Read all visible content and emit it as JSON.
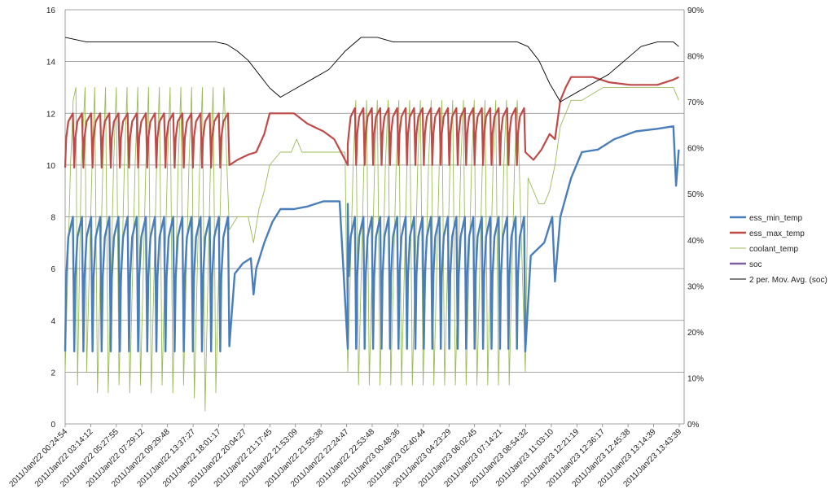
{
  "chart_data": {
    "type": "line",
    "left_axis": {
      "min": 0,
      "max": 16,
      "ticks": [
        "0",
        "2",
        "4",
        "6",
        "8",
        "10",
        "12",
        "14",
        "16"
      ]
    },
    "right_axis": {
      "min": 0,
      "max": 90,
      "ticks": [
        "0%",
        "10%",
        "20%",
        "30%",
        "40%",
        "50%",
        "60%",
        "70%",
        "80%",
        "90%"
      ]
    },
    "x_labels": [
      "2011/Jan/22 00:24:54",
      "2011/Jan/22 03:14:12",
      "2011/Jan/22 05:27:55",
      "2011/Jan/22 07:29:12",
      "2011/Jan/22 09:29:48",
      "2011/Jan/22 13:37:27",
      "2011/Jan/22 18:01:17",
      "2011/Jan/22 20:04:27",
      "2011/Jan/22 21:17:45",
      "2011/Jan/22 21:53:09",
      "2011/Jan/22 21:55:38",
      "2011/Jan/22 22:24:47",
      "2011/Jan/22 22:53:48",
      "2011/Jan/23 00:48:36",
      "2011/Jan/23 02:40:44",
      "2011/Jan/23 04:23:29",
      "2011/Jan/23 06:02:45",
      "2011/Jan/23 07:14:21",
      "2011/Jan/23 08:54:32",
      "2011/Jan/23 11:03:10",
      "2011/Jan/23 12:21:19",
      "2011/Jan/23 12:36:17",
      "2011/Jan/23 12:45:38",
      "2011/Jan/23 13:14:39",
      "2011/Jan/23 13:43:39"
    ],
    "grid": true,
    "legend_position": "right",
    "legend": [
      {
        "name": "ess_min_temp",
        "color": "#4a7ebb"
      },
      {
        "name": "ess_max_temp",
        "color": "#be4b48"
      },
      {
        "name": "coolant_temp",
        "color": "#9bbb59"
      },
      {
        "name": "soc",
        "color": "#7d60a0"
      },
      {
        "name": "2 per. Mov. Avg. (soc)",
        "color": "#000000"
      }
    ],
    "series": [
      {
        "name": "soc (2 per. Mov. Avg.)",
        "axis": "right",
        "values": [
          [
            0.0,
            84
          ],
          [
            4.0,
            83
          ],
          [
            8.0,
            83
          ],
          [
            12.0,
            83
          ],
          [
            16.0,
            83
          ],
          [
            20.0,
            83
          ],
          [
            24.0,
            83
          ],
          [
            28.0,
            83
          ],
          [
            30.0,
            82.5
          ],
          [
            32.0,
            81
          ],
          [
            34.0,
            79
          ],
          [
            36.0,
            76
          ],
          [
            38.0,
            73
          ],
          [
            40.0,
            71
          ],
          [
            43.0,
            73
          ],
          [
            46.0,
            75
          ],
          [
            49.0,
            77
          ],
          [
            52.0,
            81
          ],
          [
            55.0,
            84
          ],
          [
            58.0,
            84
          ],
          [
            61.0,
            83
          ],
          [
            64.0,
            83
          ],
          [
            68.0,
            83
          ],
          [
            72.0,
            83
          ],
          [
            76.0,
            83
          ],
          [
            80.0,
            83
          ],
          [
            84.0,
            83
          ],
          [
            86.0,
            82
          ],
          [
            88.0,
            79
          ],
          [
            90.0,
            74
          ],
          [
            92.0,
            70
          ],
          [
            95.0,
            72
          ],
          [
            98.0,
            74
          ],
          [
            101.0,
            76
          ],
          [
            104.0,
            79
          ],
          [
            107.0,
            82
          ],
          [
            110.0,
            83
          ],
          [
            113.0,
            83
          ],
          [
            114.0,
            82
          ]
        ]
      },
      {
        "name": "ess_min_temp",
        "axis": "left",
        "sawtooth_segments": [
          {
            "x_start": 0.0,
            "x_end": 30.5,
            "teeth": 18,
            "low": 2.8,
            "high": 8.0
          },
          {
            "x_start": 52.5,
            "x_end": 85.5,
            "teeth": 21,
            "low": 2.9,
            "high": 8.0
          }
        ],
        "values": [
          [
            30.5,
            3.0
          ],
          [
            31.5,
            5.8
          ],
          [
            33.0,
            6.2
          ],
          [
            34.5,
            6.4
          ],
          [
            35.0,
            5.0
          ],
          [
            35.5,
            6.0
          ],
          [
            37.0,
            7.0
          ],
          [
            38.5,
            7.8
          ],
          [
            40.0,
            8.3
          ],
          [
            42.5,
            8.3
          ],
          [
            45.0,
            8.4
          ],
          [
            48.0,
            8.6
          ],
          [
            51.0,
            8.6
          ],
          [
            52.5,
            8.5
          ],
          [
            85.5,
            2.8
          ],
          [
            86.5,
            6.5
          ],
          [
            89.0,
            7.0
          ],
          [
            90.5,
            8.0
          ],
          [
            91.0,
            5.5
          ],
          [
            92.0,
            8.0
          ],
          [
            94.0,
            9.5
          ],
          [
            96.0,
            10.5
          ],
          [
            99.0,
            10.6
          ],
          [
            102.0,
            11.0
          ],
          [
            106.0,
            11.3
          ],
          [
            110.0,
            11.4
          ],
          [
            113.0,
            11.5
          ],
          [
            113.5,
            9.2
          ],
          [
            114.0,
            10.6
          ]
        ]
      },
      {
        "name": "ess_max_temp",
        "axis": "left",
        "sawtooth_segments": [
          {
            "x_start": 0.0,
            "x_end": 30.5,
            "teeth": 18,
            "low": 9.9,
            "high": 12.0
          },
          {
            "x_start": 52.5,
            "x_end": 85.5,
            "teeth": 21,
            "low": 10.0,
            "high": 12.2
          }
        ],
        "values": [
          [
            30.5,
            10.0
          ],
          [
            32.0,
            10.2
          ],
          [
            34.0,
            10.4
          ],
          [
            35.5,
            10.5
          ],
          [
            37.0,
            11.2
          ],
          [
            38.0,
            12.0
          ],
          [
            40.0,
            12.0
          ],
          [
            42.5,
            12.0
          ],
          [
            45.0,
            11.6
          ],
          [
            48.0,
            11.3
          ],
          [
            50.0,
            11.0
          ],
          [
            52.5,
            10.8
          ],
          [
            85.5,
            10.5
          ],
          [
            87.0,
            10.2
          ],
          [
            88.5,
            10.6
          ],
          [
            90.0,
            11.2
          ],
          [
            91.0,
            11.0
          ],
          [
            92.0,
            12.5
          ],
          [
            93.0,
            13.0
          ],
          [
            94.0,
            13.4
          ],
          [
            98.0,
            13.4
          ],
          [
            101.0,
            13.2
          ],
          [
            105.0,
            13.1
          ],
          [
            110.0,
            13.1
          ],
          [
            113.0,
            13.3
          ],
          [
            114.0,
            13.4
          ]
        ]
      },
      {
        "name": "coolant_temp",
        "axis": "left",
        "values": [
          [
            0,
            2.0
          ],
          [
            1,
            10
          ],
          [
            1.5,
            12.5
          ],
          [
            2,
            13
          ],
          [
            2.3,
            1.5
          ],
          [
            3,
            10
          ],
          [
            3.7,
            13
          ],
          [
            4,
            2
          ],
          [
            5,
            10
          ],
          [
            5.5,
            13
          ],
          [
            6,
            1.2
          ],
          [
            7,
            10
          ],
          [
            7.5,
            13
          ],
          [
            8,
            1.2
          ],
          [
            9,
            10
          ],
          [
            9.5,
            13
          ],
          [
            10,
            1.5
          ],
          [
            11,
            10
          ],
          [
            11.5,
            13
          ],
          [
            12,
            1.2
          ],
          [
            13,
            10
          ],
          [
            13.5,
            13
          ],
          [
            14,
            1.5
          ],
          [
            15,
            10
          ],
          [
            15.5,
            13
          ],
          [
            16,
            1.2
          ],
          [
            17,
            10
          ],
          [
            17.5,
            13
          ],
          [
            18,
            1.5
          ],
          [
            19,
            10
          ],
          [
            19.5,
            13
          ],
          [
            20,
            1.2
          ],
          [
            21,
            10
          ],
          [
            21.5,
            13
          ],
          [
            22,
            1.5
          ],
          [
            23,
            10
          ],
          [
            23.5,
            13
          ],
          [
            24,
            1.0
          ],
          [
            25,
            10
          ],
          [
            25.5,
            13
          ],
          [
            26,
            0.5
          ],
          [
            27,
            10
          ],
          [
            27.5,
            13
          ],
          [
            28,
            1.2
          ],
          [
            29,
            10
          ],
          [
            29.5,
            13
          ],
          [
            30.5,
            7.5
          ],
          [
            32,
            8.0
          ],
          [
            34,
            8.0
          ],
          [
            35,
            7.0
          ],
          [
            36,
            8.3
          ],
          [
            37,
            9.0
          ],
          [
            38,
            10.0
          ],
          [
            40,
            10.5
          ],
          [
            42,
            10.5
          ],
          [
            43,
            11.0
          ],
          [
            44,
            10.5
          ],
          [
            48,
            10.5
          ],
          [
            52,
            10.5
          ],
          [
            52.5,
            2.0
          ],
          [
            53.5,
            10
          ],
          [
            54,
            12.5
          ],
          [
            54.5,
            1.5
          ],
          [
            55.5,
            10
          ],
          [
            56,
            12.5
          ],
          [
            56.5,
            1.5
          ],
          [
            57.5,
            10
          ],
          [
            58,
            12.5
          ],
          [
            58.5,
            1.5
          ],
          [
            59.5,
            10
          ],
          [
            60,
            12.5
          ],
          [
            60.5,
            1.5
          ],
          [
            61.5,
            10
          ],
          [
            62,
            12.5
          ],
          [
            62.5,
            1.5
          ],
          [
            63.5,
            10
          ],
          [
            64,
            12.5
          ],
          [
            64.5,
            1.5
          ],
          [
            65.5,
            10
          ],
          [
            66,
            12.5
          ],
          [
            66.5,
            1.5
          ],
          [
            67.5,
            10
          ],
          [
            68,
            12.5
          ],
          [
            68.5,
            1.5
          ],
          [
            69.5,
            10
          ],
          [
            70,
            12.5
          ],
          [
            70.5,
            1.5
          ],
          [
            71.5,
            10
          ],
          [
            72,
            12.5
          ],
          [
            72.5,
            1.5
          ],
          [
            73.5,
            10
          ],
          [
            74,
            12.5
          ],
          [
            74.5,
            1.5
          ],
          [
            75.5,
            10
          ],
          [
            76,
            12.5
          ],
          [
            76.5,
            1.5
          ],
          [
            77.5,
            10
          ],
          [
            78,
            12.5
          ],
          [
            78.5,
            1.5
          ],
          [
            79.5,
            10
          ],
          [
            80,
            12.5
          ],
          [
            80.5,
            1.5
          ],
          [
            81.5,
            10
          ],
          [
            82,
            12.5
          ],
          [
            82.5,
            1.5
          ],
          [
            83.5,
            10
          ],
          [
            84,
            12.5
          ],
          [
            85.5,
            2.0
          ],
          [
            86,
            9.5
          ],
          [
            87,
            9.0
          ],
          [
            88,
            8.5
          ],
          [
            89,
            8.5
          ],
          [
            90,
            9.0
          ],
          [
            91,
            10
          ],
          [
            92,
            11.5
          ],
          [
            93,
            12.0
          ],
          [
            94,
            12.5
          ],
          [
            96,
            12.5
          ],
          [
            100,
            13.0
          ],
          [
            105,
            13.0
          ],
          [
            110,
            13.0
          ],
          [
            113,
            13.0
          ],
          [
            114,
            12.5
          ]
        ]
      }
    ]
  }
}
